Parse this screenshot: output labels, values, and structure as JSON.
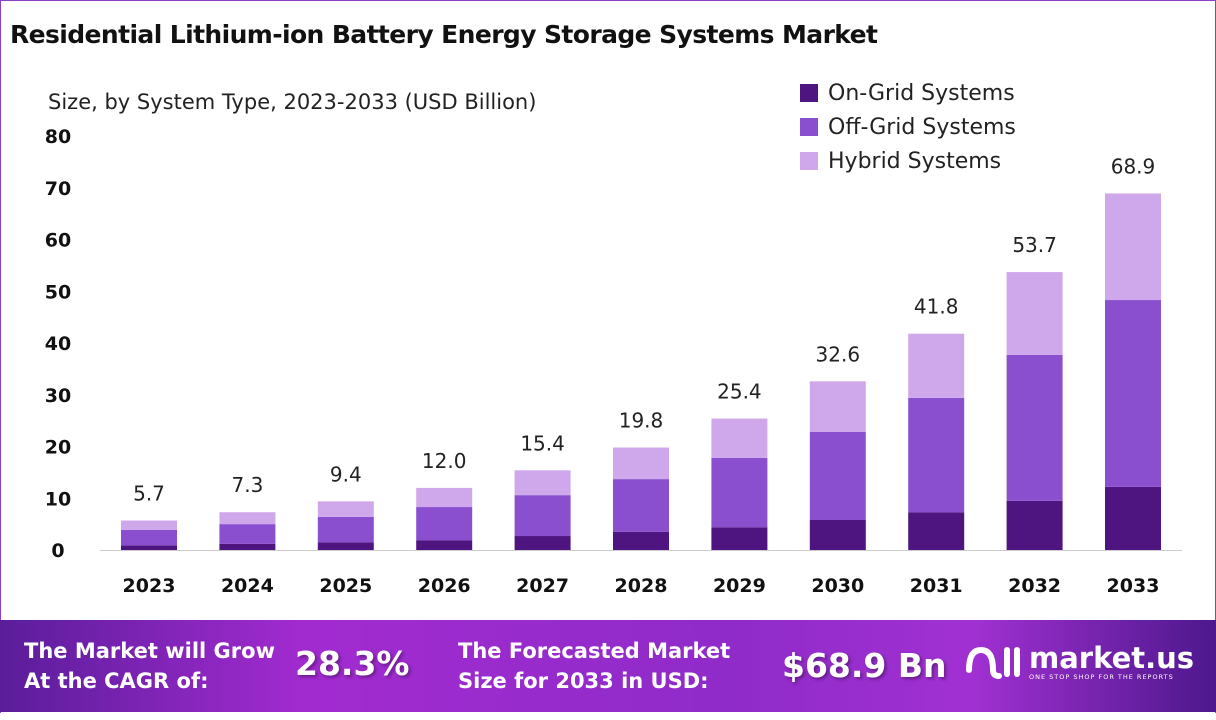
{
  "chart_data": {
    "type": "bar",
    "stacked": true,
    "title": "Residential Lithium-ion Battery Energy Storage Systems Market",
    "subtitle": "Size, by System Type, 2023-2033 (USD Billion)",
    "categories": [
      "2023",
      "2024",
      "2025",
      "2026",
      "2027",
      "2028",
      "2029",
      "2030",
      "2031",
      "2032",
      "2033"
    ],
    "series": [
      {
        "name": "On-Grid Systems",
        "color": "#4e1581",
        "values": [
          0.9,
          1.2,
          1.5,
          1.9,
          2.7,
          3.5,
          4.4,
          5.8,
          7.3,
          9.5,
          12.2
        ]
      },
      {
        "name": "Off-Grid Systems",
        "color": "#8a4fcf",
        "values": [
          3.0,
          3.8,
          4.9,
          6.4,
          7.9,
          10.2,
          13.4,
          17.0,
          22.1,
          28.2,
          36.1
        ]
      },
      {
        "name": "Hybrid Systems",
        "color": "#cfa8ec",
        "values": [
          1.8,
          2.3,
          3.0,
          3.7,
          4.8,
          6.1,
          7.6,
          9.8,
          12.4,
          16.0,
          20.6
        ]
      }
    ],
    "totals": [
      "5.7",
      "7.3",
      "9.4",
      "12.0",
      "15.4",
      "19.8",
      "25.4",
      "32.6",
      "41.8",
      "53.7",
      "68.9"
    ],
    "ylim": [
      0,
      80
    ],
    "yticks": [
      "0",
      "10",
      "20",
      "30",
      "40",
      "50",
      "60",
      "70",
      "80"
    ],
    "grid": false,
    "legend": "top-right"
  },
  "footer": {
    "cagr_label_1": "The Market will Grow",
    "cagr_label_2": "At the CAGR of:",
    "cagr_value": "28.3%",
    "forecast_label_1": "The Forecasted Market",
    "forecast_label_2": "Size for 2033 in USD:",
    "forecast_value": "$68.9 Bn",
    "brand": "market.us",
    "tagline": "ONE STOP SHOP FOR THE REPORTS"
  }
}
